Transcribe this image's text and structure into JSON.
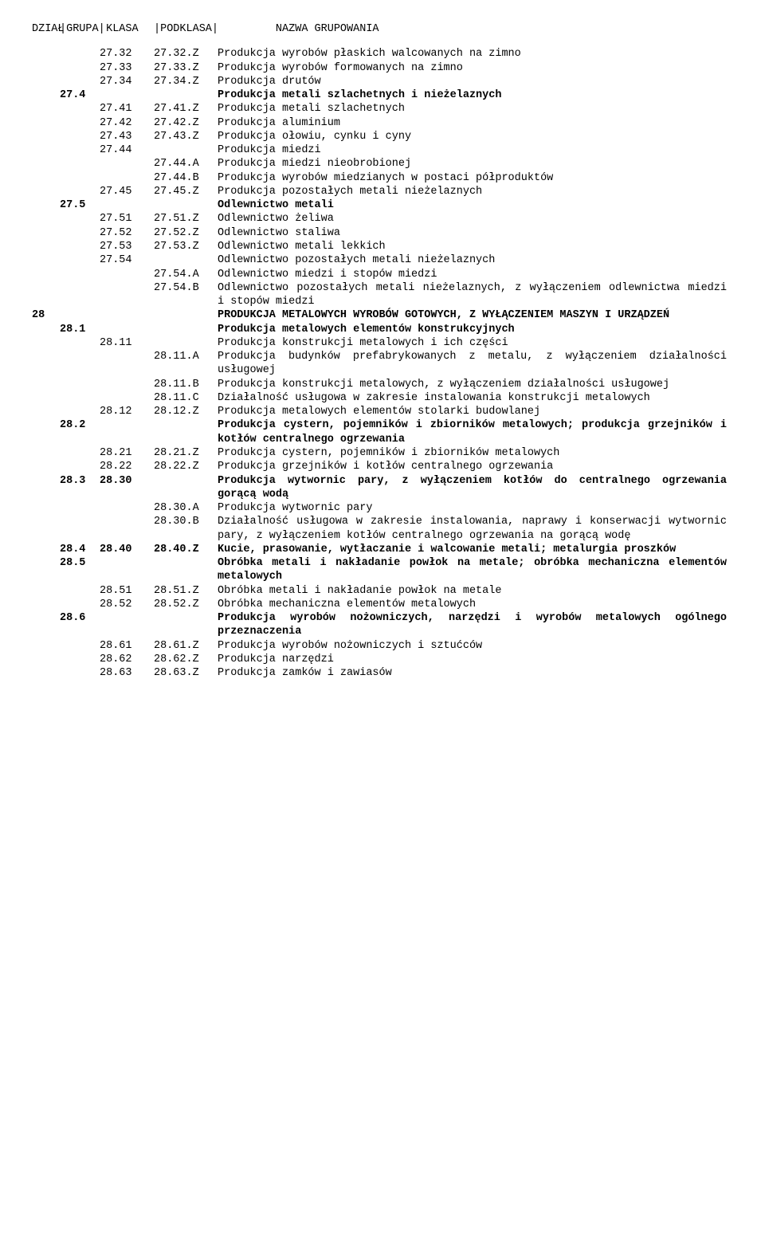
{
  "header": {
    "dzial": "DZIAŁ",
    "grupa": "|GRUPA|",
    "klasa": " KLASA ",
    "podklasa": "|PODKLASA|",
    "nazwa": "         NAZWA GRUPOWANIA"
  },
  "rows": [
    {
      "dzial": "",
      "grupa": "",
      "klasa": "27.32",
      "podklasa": "27.32.Z",
      "nazwa": "Produkcja wyrobów płaskich walcowanych na zimno",
      "bold": false
    },
    {
      "dzial": "",
      "grupa": "",
      "klasa": "27.33",
      "podklasa": "27.33.Z",
      "nazwa": "Produkcja wyrobów formowanych na zimno",
      "bold": false
    },
    {
      "dzial": "",
      "grupa": "",
      "klasa": "27.34",
      "podklasa": "27.34.Z",
      "nazwa": "Produkcja drutów",
      "bold": false
    },
    {
      "dzial": "",
      "grupa": "27.4",
      "klasa": "",
      "podklasa": "",
      "nazwa": "Produkcja metali szlachetnych i nieżelaznych",
      "bold": true
    },
    {
      "dzial": "",
      "grupa": "",
      "klasa": "27.41",
      "podklasa": "27.41.Z",
      "nazwa": "Produkcja metali szlachetnych",
      "bold": false
    },
    {
      "dzial": "",
      "grupa": "",
      "klasa": "27.42",
      "podklasa": "27.42.Z",
      "nazwa": "Produkcja aluminium",
      "bold": false
    },
    {
      "dzial": "",
      "grupa": "",
      "klasa": "27.43",
      "podklasa": "27.43.Z",
      "nazwa": "Produkcja ołowiu, cynku i cyny",
      "bold": false
    },
    {
      "dzial": "",
      "grupa": "",
      "klasa": "27.44",
      "podklasa": "",
      "nazwa": "Produkcja miedzi",
      "bold": false
    },
    {
      "dzial": "",
      "grupa": "",
      "klasa": "",
      "podklasa": "27.44.A",
      "nazwa": "Produkcja miedzi nieobrobionej",
      "bold": false
    },
    {
      "dzial": "",
      "grupa": "",
      "klasa": "",
      "podklasa": "27.44.B",
      "nazwa": "Produkcja wyrobów miedzianych w postaci półproduktów",
      "bold": false
    },
    {
      "dzial": "",
      "grupa": "",
      "klasa": "27.45",
      "podklasa": "27.45.Z",
      "nazwa": "Produkcja pozostałych metali nieżelaznych",
      "bold": false
    },
    {
      "dzial": "",
      "grupa": "27.5",
      "klasa": "",
      "podklasa": "",
      "nazwa": "Odlewnictwo metali",
      "bold": true
    },
    {
      "dzial": "",
      "grupa": "",
      "klasa": "27.51",
      "podklasa": "27.51.Z",
      "nazwa": "Odlewnictwo żeliwa",
      "bold": false
    },
    {
      "dzial": "",
      "grupa": "",
      "klasa": "27.52",
      "podklasa": "27.52.Z",
      "nazwa": "Odlewnictwo staliwa",
      "bold": false
    },
    {
      "dzial": "",
      "grupa": "",
      "klasa": "27.53",
      "podklasa": "27.53.Z",
      "nazwa": "Odlewnictwo metali lekkich",
      "bold": false
    },
    {
      "dzial": "",
      "grupa": "",
      "klasa": "27.54",
      "podklasa": "",
      "nazwa": "Odlewnictwo pozostałych metali nieżelaznych",
      "bold": false
    },
    {
      "dzial": "",
      "grupa": "",
      "klasa": "",
      "podklasa": "27.54.A",
      "nazwa": "Odlewnictwo miedzi i stopów miedzi",
      "bold": false
    },
    {
      "dzial": "",
      "grupa": "",
      "klasa": "",
      "podklasa": "27.54.B",
      "nazwa": "Odlewnictwo pozostałych metali nieżelaznych, z wyłączeniem odlewnictwa miedzi i stopów miedzi",
      "bold": false
    },
    {
      "dzial": "28",
      "grupa": "",
      "klasa": "",
      "podklasa": "",
      "nazwa": "PRODUKCJA METALOWYCH WYROBÓW GOTOWYCH, Z WYŁĄCZENIEM MASZYN I URZĄDZEŃ",
      "bold": true
    },
    {
      "dzial": "",
      "grupa": "28.1",
      "klasa": "",
      "podklasa": "",
      "nazwa": "Produkcja metalowych elementów konstrukcyjnych",
      "bold": true
    },
    {
      "dzial": "",
      "grupa": "",
      "klasa": "28.11",
      "podklasa": "",
      "nazwa": "Produkcja konstrukcji metalowych i ich części",
      "bold": false
    },
    {
      "dzial": "",
      "grupa": "",
      "klasa": "",
      "podklasa": "28.11.A",
      "nazwa": "Produkcja budynków prefabrykowanych z metalu, z wyłączeniem działalności usługowej",
      "bold": false
    },
    {
      "dzial": "",
      "grupa": "",
      "klasa": "",
      "podklasa": "28.11.B",
      "nazwa": "Produkcja konstrukcji metalowych, z wyłączeniem działalności usługowej",
      "bold": false
    },
    {
      "dzial": "",
      "grupa": "",
      "klasa": "",
      "podklasa": "28.11.C",
      "nazwa": "Działalność usługowa w zakresie instalowania konstrukcji metalowych",
      "bold": false
    },
    {
      "dzial": "",
      "grupa": "",
      "klasa": "28.12",
      "podklasa": "28.12.Z",
      "nazwa": "Produkcja metalowych elementów stolarki budowlanej",
      "bold": false
    },
    {
      "dzial": "",
      "grupa": "28.2",
      "klasa": "",
      "podklasa": "",
      "nazwa": "Produkcja cystern, pojemników i zbiorników metalowych; produkcja grzejników i kotłów centralnego ogrzewania",
      "bold": true
    },
    {
      "dzial": "",
      "grupa": "",
      "klasa": "28.21",
      "podklasa": "28.21.Z",
      "nazwa": "Produkcja cystern, pojemników i zbiorników metalowych",
      "bold": false
    },
    {
      "dzial": "",
      "grupa": "",
      "klasa": "28.22",
      "podklasa": "28.22.Z",
      "nazwa": "Produkcja grzejników i kotłów centralnego ogrzewania",
      "bold": false
    },
    {
      "dzial": "",
      "grupa": "28.3",
      "klasa": "28.30",
      "podklasa": "",
      "nazwa": "Produkcja wytwornic pary, z wyłączeniem kotłów do centralnego ogrzewania gorącą wodą",
      "bold": true
    },
    {
      "dzial": "",
      "grupa": "",
      "klasa": "",
      "podklasa": "28.30.A",
      "nazwa": "Produkcja wytwornic pary",
      "bold": false
    },
    {
      "dzial": "",
      "grupa": "",
      "klasa": "",
      "podklasa": "28.30.B",
      "nazwa": "Działalność usługowa w zakresie instalowania, naprawy i konserwacji wytwornic pary, z wyłączeniem kotłów centralnego ogrzewania na gorącą wodę",
      "bold": false
    },
    {
      "dzial": "",
      "grupa": "28.4",
      "klasa": "28.40",
      "podklasa": "28.40.Z",
      "nazwa": "Kucie, prasowanie, wytłaczanie i walcowanie metali; metalurgia proszków",
      "bold": true
    },
    {
      "dzial": "",
      "grupa": "28.5",
      "klasa": "",
      "podklasa": "",
      "nazwa": "Obróbka metali i nakładanie powłok na metale; obróbka mechaniczna elementów metalowych",
      "bold": true
    },
    {
      "dzial": "",
      "grupa": "",
      "klasa": "28.51",
      "podklasa": "28.51.Z",
      "nazwa": "Obróbka metali i nakładanie powłok na metale",
      "bold": false
    },
    {
      "dzial": "",
      "grupa": "",
      "klasa": "28.52",
      "podklasa": "28.52.Z",
      "nazwa": "Obróbka mechaniczna elementów metalowych",
      "bold": false
    },
    {
      "dzial": "",
      "grupa": "28.6",
      "klasa": "",
      "podklasa": "",
      "nazwa": "Produkcja wyrobów nożowniczych, narzędzi i wyrobów metalowych ogólnego przeznaczenia",
      "bold": true
    },
    {
      "dzial": "",
      "grupa": "",
      "klasa": "28.61",
      "podklasa": "28.61.Z",
      "nazwa": "Produkcja wyrobów nożowniczych i sztućców",
      "bold": false
    },
    {
      "dzial": "",
      "grupa": "",
      "klasa": "28.62",
      "podklasa": "28.62.Z",
      "nazwa": "Produkcja narzędzi",
      "bold": false
    },
    {
      "dzial": "",
      "grupa": "",
      "klasa": "28.63",
      "podklasa": "28.63.Z",
      "nazwa": "Produkcja zamków i zawiasów",
      "bold": false
    }
  ]
}
